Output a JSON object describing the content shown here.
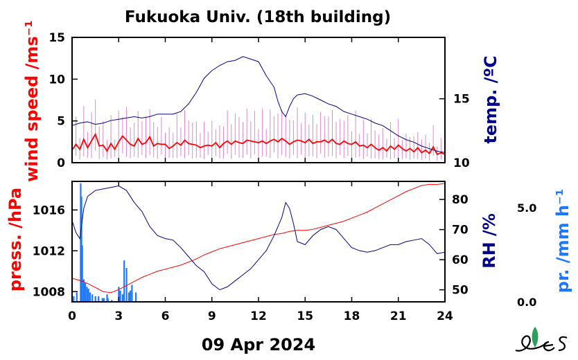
{
  "title": "Fukuoka Univ. (18th building)",
  "date_label": "09 Apr 2024",
  "colors": {
    "wind": "#ff0000",
    "wind_gust": "#dd88cc",
    "temp": "#00008b",
    "pressure": "#ff0000",
    "rh": "#00008b",
    "precip": "#1e78ff",
    "axis": "#000000"
  },
  "chart_data": [
    {
      "type": "line",
      "panel": "upper",
      "x_ticks": [
        "0",
        "3",
        "6",
        "9",
        "12",
        "15",
        "18",
        "21",
        "24"
      ],
      "xlim": [
        0,
        24
      ],
      "left_axis": {
        "label": "wind speed /ms⁻¹",
        "ylim": [
          0,
          15
        ],
        "ticks": [
          "0",
          "5",
          "10",
          "15"
        ]
      },
      "right_axis": {
        "label": "temp. /ºC",
        "ylim": [
          10,
          19.8
        ],
        "ticks": [
          "10",
          "15"
        ]
      },
      "series": [
        {
          "axis": "left",
          "color": "#ff0000",
          "style": "line",
          "x": [
            0,
            0.25,
            0.5,
            0.75,
            1.0,
            1.25,
            1.5,
            1.75,
            2.0,
            2.25,
            2.5,
            2.75,
            3.0,
            3.25,
            3.5,
            3.75,
            4.0,
            4.25,
            4.5,
            4.75,
            5.0,
            5.25,
            5.5,
            5.75,
            6.0,
            6.25,
            6.5,
            6.75,
            7.0,
            7.25,
            7.5,
            7.75,
            8.0,
            8.25,
            8.5,
            8.75,
            9.0,
            9.25,
            9.5,
            9.75,
            10.0,
            10.25,
            10.5,
            10.75,
            11.0,
            11.25,
            11.5,
            11.75,
            12.0,
            12.25,
            12.5,
            12.75,
            13.0,
            13.25,
            13.5,
            13.75,
            14.0,
            14.25,
            14.5,
            14.75,
            15.0,
            15.25,
            15.5,
            15.75,
            16.0,
            16.25,
            16.5,
            16.75,
            17.0,
            17.25,
            17.5,
            17.75,
            18.0,
            18.25,
            18.5,
            18.75,
            19.0,
            19.25,
            19.5,
            19.75,
            20.0,
            20.25,
            20.5,
            20.75,
            21.0,
            21.25,
            21.5,
            21.75,
            22.0,
            22.25,
            22.5,
            22.75,
            23.0,
            23.25,
            23.5,
            23.75,
            24.0
          ],
          "y": [
            1.5,
            2.2,
            1.6,
            2.8,
            1.8,
            2.6,
            3.4,
            2.0,
            2.1,
            1.4,
            2.3,
            1.6,
            2.5,
            3.2,
            2.7,
            2.2,
            2.0,
            2.9,
            2.2,
            2.4,
            3.1,
            2.0,
            2.3,
            2.2,
            2.2,
            1.7,
            2.0,
            2.4,
            2.1,
            2.7,
            2.3,
            2.2,
            2.1,
            1.8,
            2.0,
            2.1,
            2.0,
            2.4,
            1.8,
            2.3,
            2.6,
            2.2,
            2.6,
            2.4,
            2.3,
            2.7,
            2.6,
            2.5,
            2.4,
            2.6,
            2.3,
            2.6,
            2.8,
            2.5,
            2.9,
            2.6,
            2.2,
            2.5,
            2.7,
            2.6,
            2.4,
            2.8,
            2.3,
            2.5,
            2.5,
            2.7,
            2.4,
            2.8,
            2.3,
            2.2,
            2.6,
            2.3,
            2.2,
            2.5,
            2.0,
            2.1,
            1.8,
            2.2,
            1.8,
            1.5,
            1.8,
            1.4,
            2.0,
            1.6,
            2.1,
            1.7,
            1.4,
            1.7,
            1.3,
            1.8,
            1.2,
            1.5,
            1.1,
            1.9,
            1.0,
            1.2,
            1.0
          ]
        },
        {
          "axis": "right",
          "color": "#00008b",
          "style": "line",
          "x": [
            0,
            0.5,
            1.0,
            1.5,
            2.0,
            2.5,
            3.0,
            3.5,
            4.0,
            4.5,
            5.0,
            5.5,
            6.0,
            6.5,
            7.0,
            7.5,
            8.0,
            8.5,
            9.0,
            9.5,
            10.0,
            10.5,
            11.0,
            11.5,
            12.0,
            12.5,
            13.0,
            13.25,
            13.5,
            13.75,
            14.0,
            14.25,
            14.5,
            15.0,
            15.5,
            16.0,
            16.5,
            17.0,
            17.5,
            18.0,
            18.5,
            19.0,
            19.5,
            20.0,
            20.5,
            21.0,
            21.5,
            22.0,
            22.5,
            23.0,
            23.5,
            24.0
          ],
          "y": [
            12.9,
            13.1,
            13.2,
            13.0,
            13.1,
            13.3,
            13.4,
            13.5,
            13.6,
            13.5,
            13.6,
            13.8,
            13.8,
            13.8,
            14.0,
            14.6,
            15.5,
            16.6,
            17.2,
            17.6,
            17.9,
            18.0,
            18.3,
            18.1,
            17.9,
            16.8,
            15.9,
            14.8,
            14.0,
            13.6,
            14.4,
            15.0,
            15.3,
            15.4,
            15.2,
            14.9,
            14.6,
            14.4,
            14.0,
            13.8,
            13.6,
            13.4,
            13.1,
            12.9,
            12.5,
            12.1,
            11.8,
            11.6,
            11.3,
            11.1,
            10.9,
            10.8
          ]
        }
      ]
    },
    {
      "type": "line",
      "panel": "lower",
      "x_ticks": [
        "0",
        "3",
        "6",
        "9",
        "12",
        "15",
        "18",
        "21",
        "24"
      ],
      "xlabel": "",
      "xlim": [
        0,
        24
      ],
      "left_axis": {
        "label": "press. /hPa",
        "ylim": [
          1007,
          1018.8
        ],
        "ticks": [
          "1008",
          "1012",
          "1016"
        ]
      },
      "right_axis": {
        "label": "RH /%",
        "ylim": [
          46,
          86
        ],
        "ticks": [
          "50",
          "60",
          "70",
          "80"
        ]
      },
      "precip_axis": {
        "label": "pr. /mm h⁻¹",
        "ylim": [
          0,
          6.4
        ],
        "ticks": [
          "0.0",
          "5.0"
        ]
      },
      "series": [
        {
          "axis": "left",
          "color": "#ff0000",
          "style": "line",
          "x": [
            0,
            0.5,
            1.0,
            1.5,
            2.0,
            2.5,
            3.0,
            3.5,
            4.0,
            4.5,
            5.0,
            5.5,
            6.0,
            6.5,
            7.0,
            7.5,
            8.0,
            8.5,
            9.0,
            9.5,
            10.0,
            10.5,
            11.0,
            11.5,
            12.0,
            12.5,
            13.0,
            13.5,
            14.0,
            14.5,
            15.0,
            15.5,
            16.0,
            16.5,
            17.0,
            17.5,
            18.0,
            18.5,
            19.0,
            19.5,
            20.0,
            20.5,
            21.0,
            21.5,
            22.0,
            22.5,
            23.0,
            23.5,
            24.0
          ],
          "y": [
            1009.3,
            1009.1,
            1008.8,
            1008.4,
            1008.0,
            1007.9,
            1008.2,
            1008.6,
            1009.0,
            1009.4,
            1009.7,
            1010.0,
            1010.2,
            1010.4,
            1010.6,
            1010.9,
            1011.2,
            1011.6,
            1011.9,
            1012.2,
            1012.4,
            1012.6,
            1012.8,
            1013.0,
            1013.2,
            1013.4,
            1013.6,
            1013.7,
            1013.9,
            1014.0,
            1014.0,
            1014.1,
            1014.3,
            1014.5,
            1014.7,
            1014.9,
            1015.2,
            1015.5,
            1015.8,
            1016.2,
            1016.6,
            1017.0,
            1017.4,
            1017.8,
            1018.1,
            1018.4,
            1018.5,
            1018.5,
            1018.6
          ]
        },
        {
          "axis": "right",
          "color": "#00008b",
          "style": "line",
          "x": [
            0,
            0.25,
            0.5,
            0.75,
            1.0,
            1.5,
            2.0,
            2.5,
            3.0,
            3.5,
            4.0,
            4.5,
            5.0,
            5.5,
            6.0,
            6.5,
            7.0,
            7.5,
            8.0,
            8.5,
            9.0,
            9.5,
            10.0,
            10.5,
            11.0,
            11.5,
            12.0,
            12.5,
            13.0,
            13.5,
            13.75,
            14.0,
            14.25,
            14.5,
            15.0,
            15.5,
            16.0,
            16.5,
            17.0,
            17.5,
            18.0,
            18.5,
            19.0,
            19.5,
            20.0,
            20.5,
            21.0,
            21.5,
            22.0,
            22.5,
            23.0,
            23.5,
            24.0
          ],
          "y": [
            73.0,
            69.0,
            67.0,
            77.0,
            81.0,
            83.0,
            83.5,
            84.0,
            84.5,
            83.0,
            79.0,
            76.0,
            71.0,
            68.0,
            67.0,
            66.5,
            64.0,
            61.0,
            58.0,
            56.0,
            52.0,
            50.0,
            51.0,
            53.0,
            55.0,
            57.0,
            60.0,
            63.0,
            68.0,
            74.0,
            79.0,
            77.0,
            72.0,
            66.0,
            65.0,
            68.0,
            70.0,
            71.0,
            70.0,
            67.0,
            64.0,
            63.0,
            62.5,
            63.0,
            64.0,
            65.0,
            65.0,
            66.0,
            66.5,
            67.0,
            65.0,
            62.0,
            62.5
          ]
        },
        {
          "axis": "precip",
          "color": "#1e78ff",
          "style": "bar",
          "x": [
            0.1,
            0.3,
            0.55,
            0.6,
            0.65,
            0.75,
            0.85,
            0.95,
            1.05,
            1.15,
            1.3,
            1.5,
            1.7,
            1.95,
            2.05,
            2.25,
            2.3,
            2.55,
            3.0,
            3.1,
            3.25,
            3.35,
            3.5,
            3.65,
            3.75,
            3.85,
            4.1
          ],
          "values": [
            0.3,
            0.5,
            6.3,
            5.6,
            3.0,
            1.2,
            1.0,
            0.8,
            0.7,
            0.5,
            0.4,
            0.3,
            0.3,
            0.2,
            0.2,
            0.4,
            0.2,
            0.1,
            0.8,
            0.6,
            0.4,
            2.2,
            1.8,
            0.5,
            0.6,
            0.9,
            0.5
          ]
        }
      ]
    }
  ]
}
